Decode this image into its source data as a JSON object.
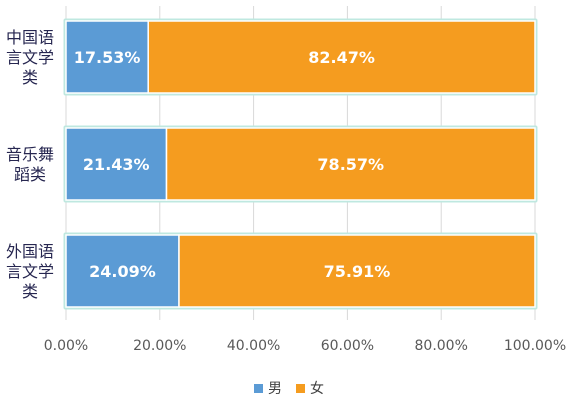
{
  "chart_data": {
    "type": "bar",
    "orientation": "horizontal",
    "stacked": "percent",
    "categories": [
      "中国语言文学类",
      "音乐舞蹈类",
      "外国语言文学类"
    ],
    "category_label_lines": [
      [
        "中国语",
        "言文学",
        "类"
      ],
      [
        "音乐舞",
        "蹈类"
      ],
      [
        "外国语",
        "言文学",
        "类"
      ]
    ],
    "series": [
      {
        "name": "男",
        "color": "#5b9bd5",
        "values": [
          17.53,
          21.43,
          24.09
        ],
        "labels": [
          "17.53%",
          "21.43%",
          "24.09%"
        ]
      },
      {
        "name": "女",
        "color": "#f59c1f",
        "values": [
          82.47,
          78.57,
          75.91
        ],
        "labels": [
          "82.47%",
          "78.57%",
          "75.91%"
        ]
      }
    ],
    "xlim": [
      0,
      100
    ],
    "xticks": [
      "0.00%",
      "20.00%",
      "40.00%",
      "60.00%",
      "80.00%",
      "100.00%"
    ],
    "grid": true,
    "legend_position": "bottom",
    "title": "",
    "xlabel": "",
    "ylabel": ""
  }
}
